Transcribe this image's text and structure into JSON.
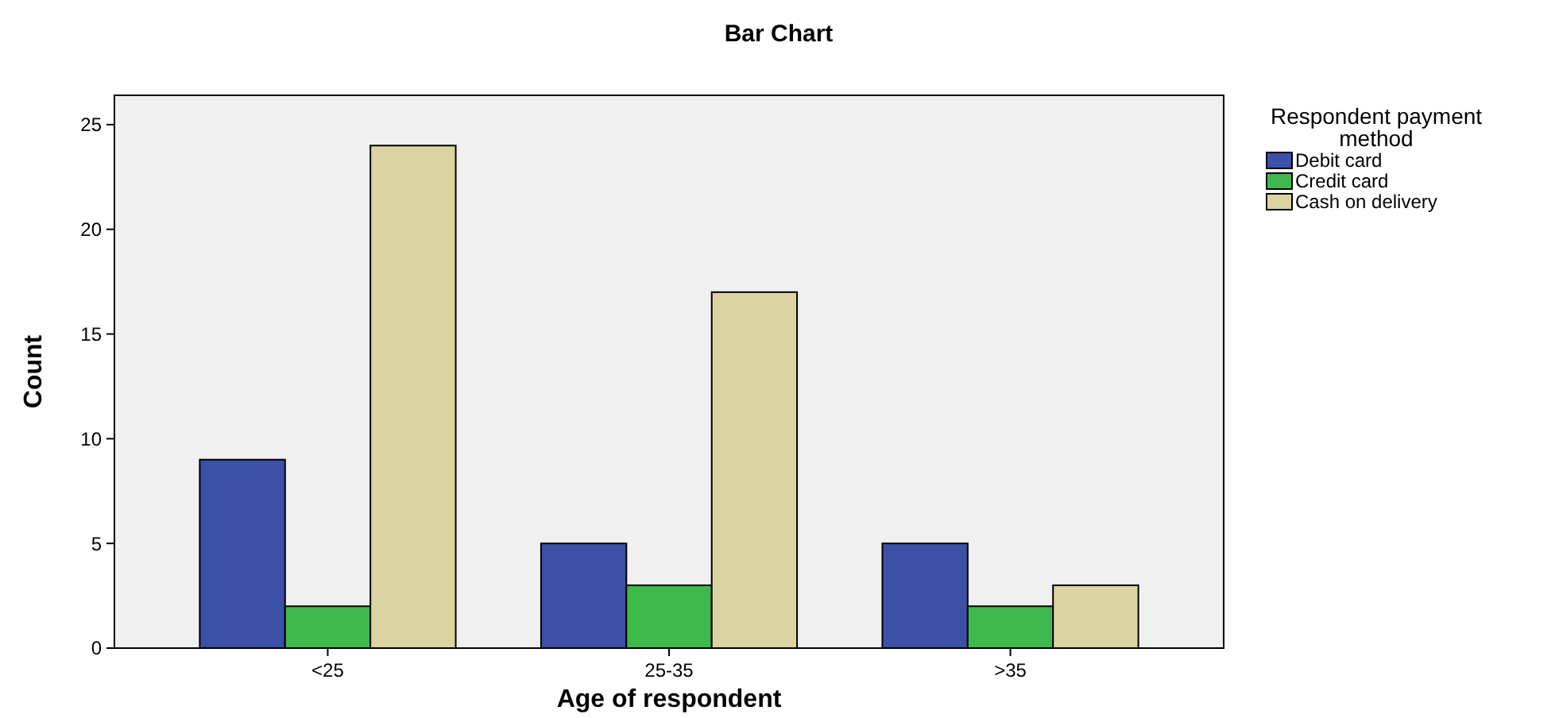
{
  "chart_data": {
    "type": "bar",
    "title": "Bar Chart",
    "xlabel": "Age of respondent",
    "ylabel": "Count",
    "legend_title": "Respondent payment method",
    "categories": [
      "<25",
      "25-35",
      ">35"
    ],
    "series": [
      {
        "name": "Debit card",
        "color": "#3c50a6",
        "values": [
          9,
          5,
          5
        ]
      },
      {
        "name": "Credit card",
        "color": "#3dba4b",
        "values": [
          2,
          3,
          2
        ]
      },
      {
        "name": "Cash on delivery",
        "color": "#d9d4a2",
        "values": [
          24,
          17,
          3
        ]
      }
    ],
    "ylim": [
      0,
      26.4
    ],
    "yticks": [
      0,
      5,
      10,
      15,
      20,
      25
    ],
    "grid": false,
    "legend": "top right"
  }
}
